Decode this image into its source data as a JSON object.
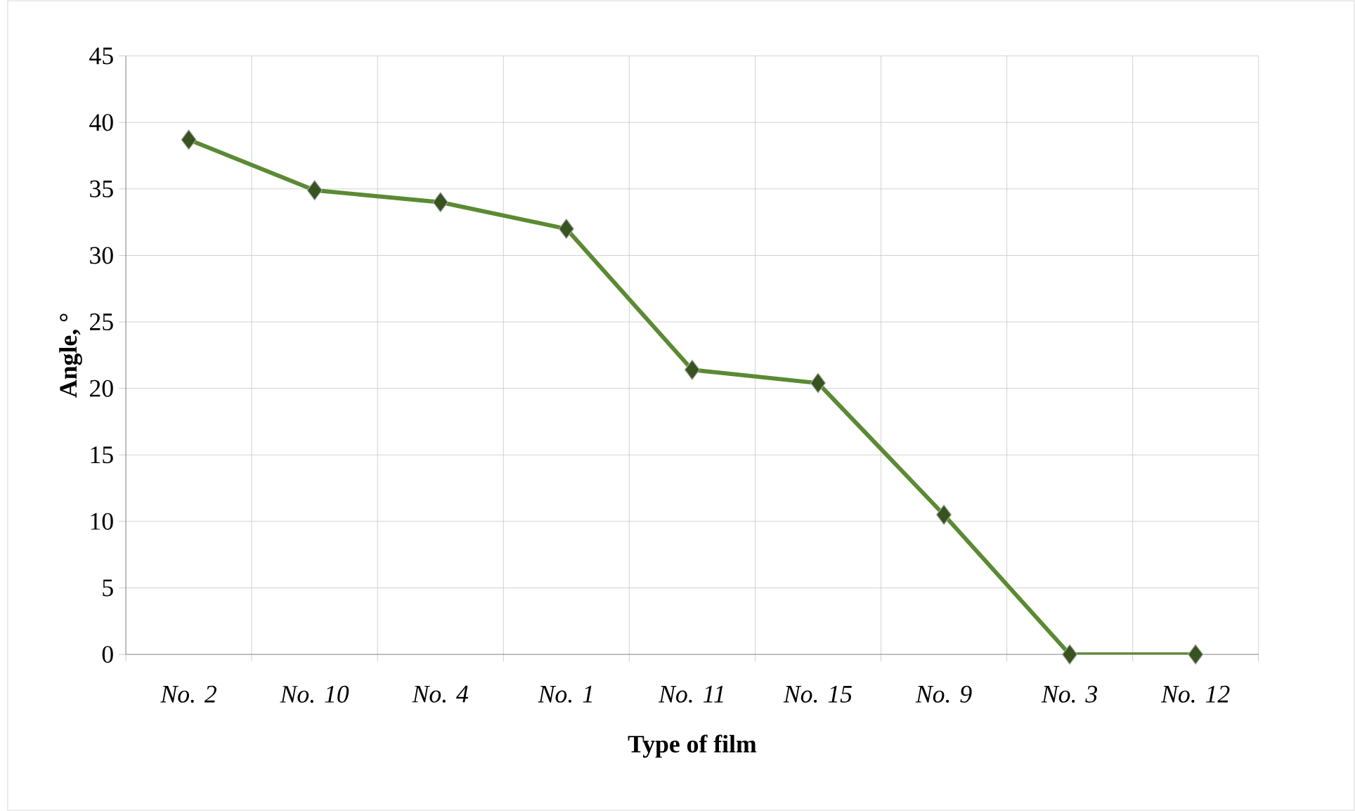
{
  "chart_data": {
    "type": "line",
    "xlabel": "Type of film",
    "ylabel": "Angle, °",
    "categories": [
      "No. 2",
      "No. 10",
      "No. 4",
      "No. 1",
      "No. 11",
      "No. 15",
      "No. 9",
      "No. 3",
      "No. 12"
    ],
    "series": [
      {
        "color": "#5b8a33",
        "values": [
          38.7,
          34.9,
          34.0,
          32.0,
          21.4,
          20.4,
          10.5,
          0,
          0
        ]
      }
    ],
    "ylim": [
      0,
      45
    ],
    "yticks": [
      0,
      5,
      10,
      15,
      20,
      25,
      30,
      35,
      40,
      45
    ],
    "grid": true,
    "marker": "diamond",
    "line_style": "solid"
  }
}
